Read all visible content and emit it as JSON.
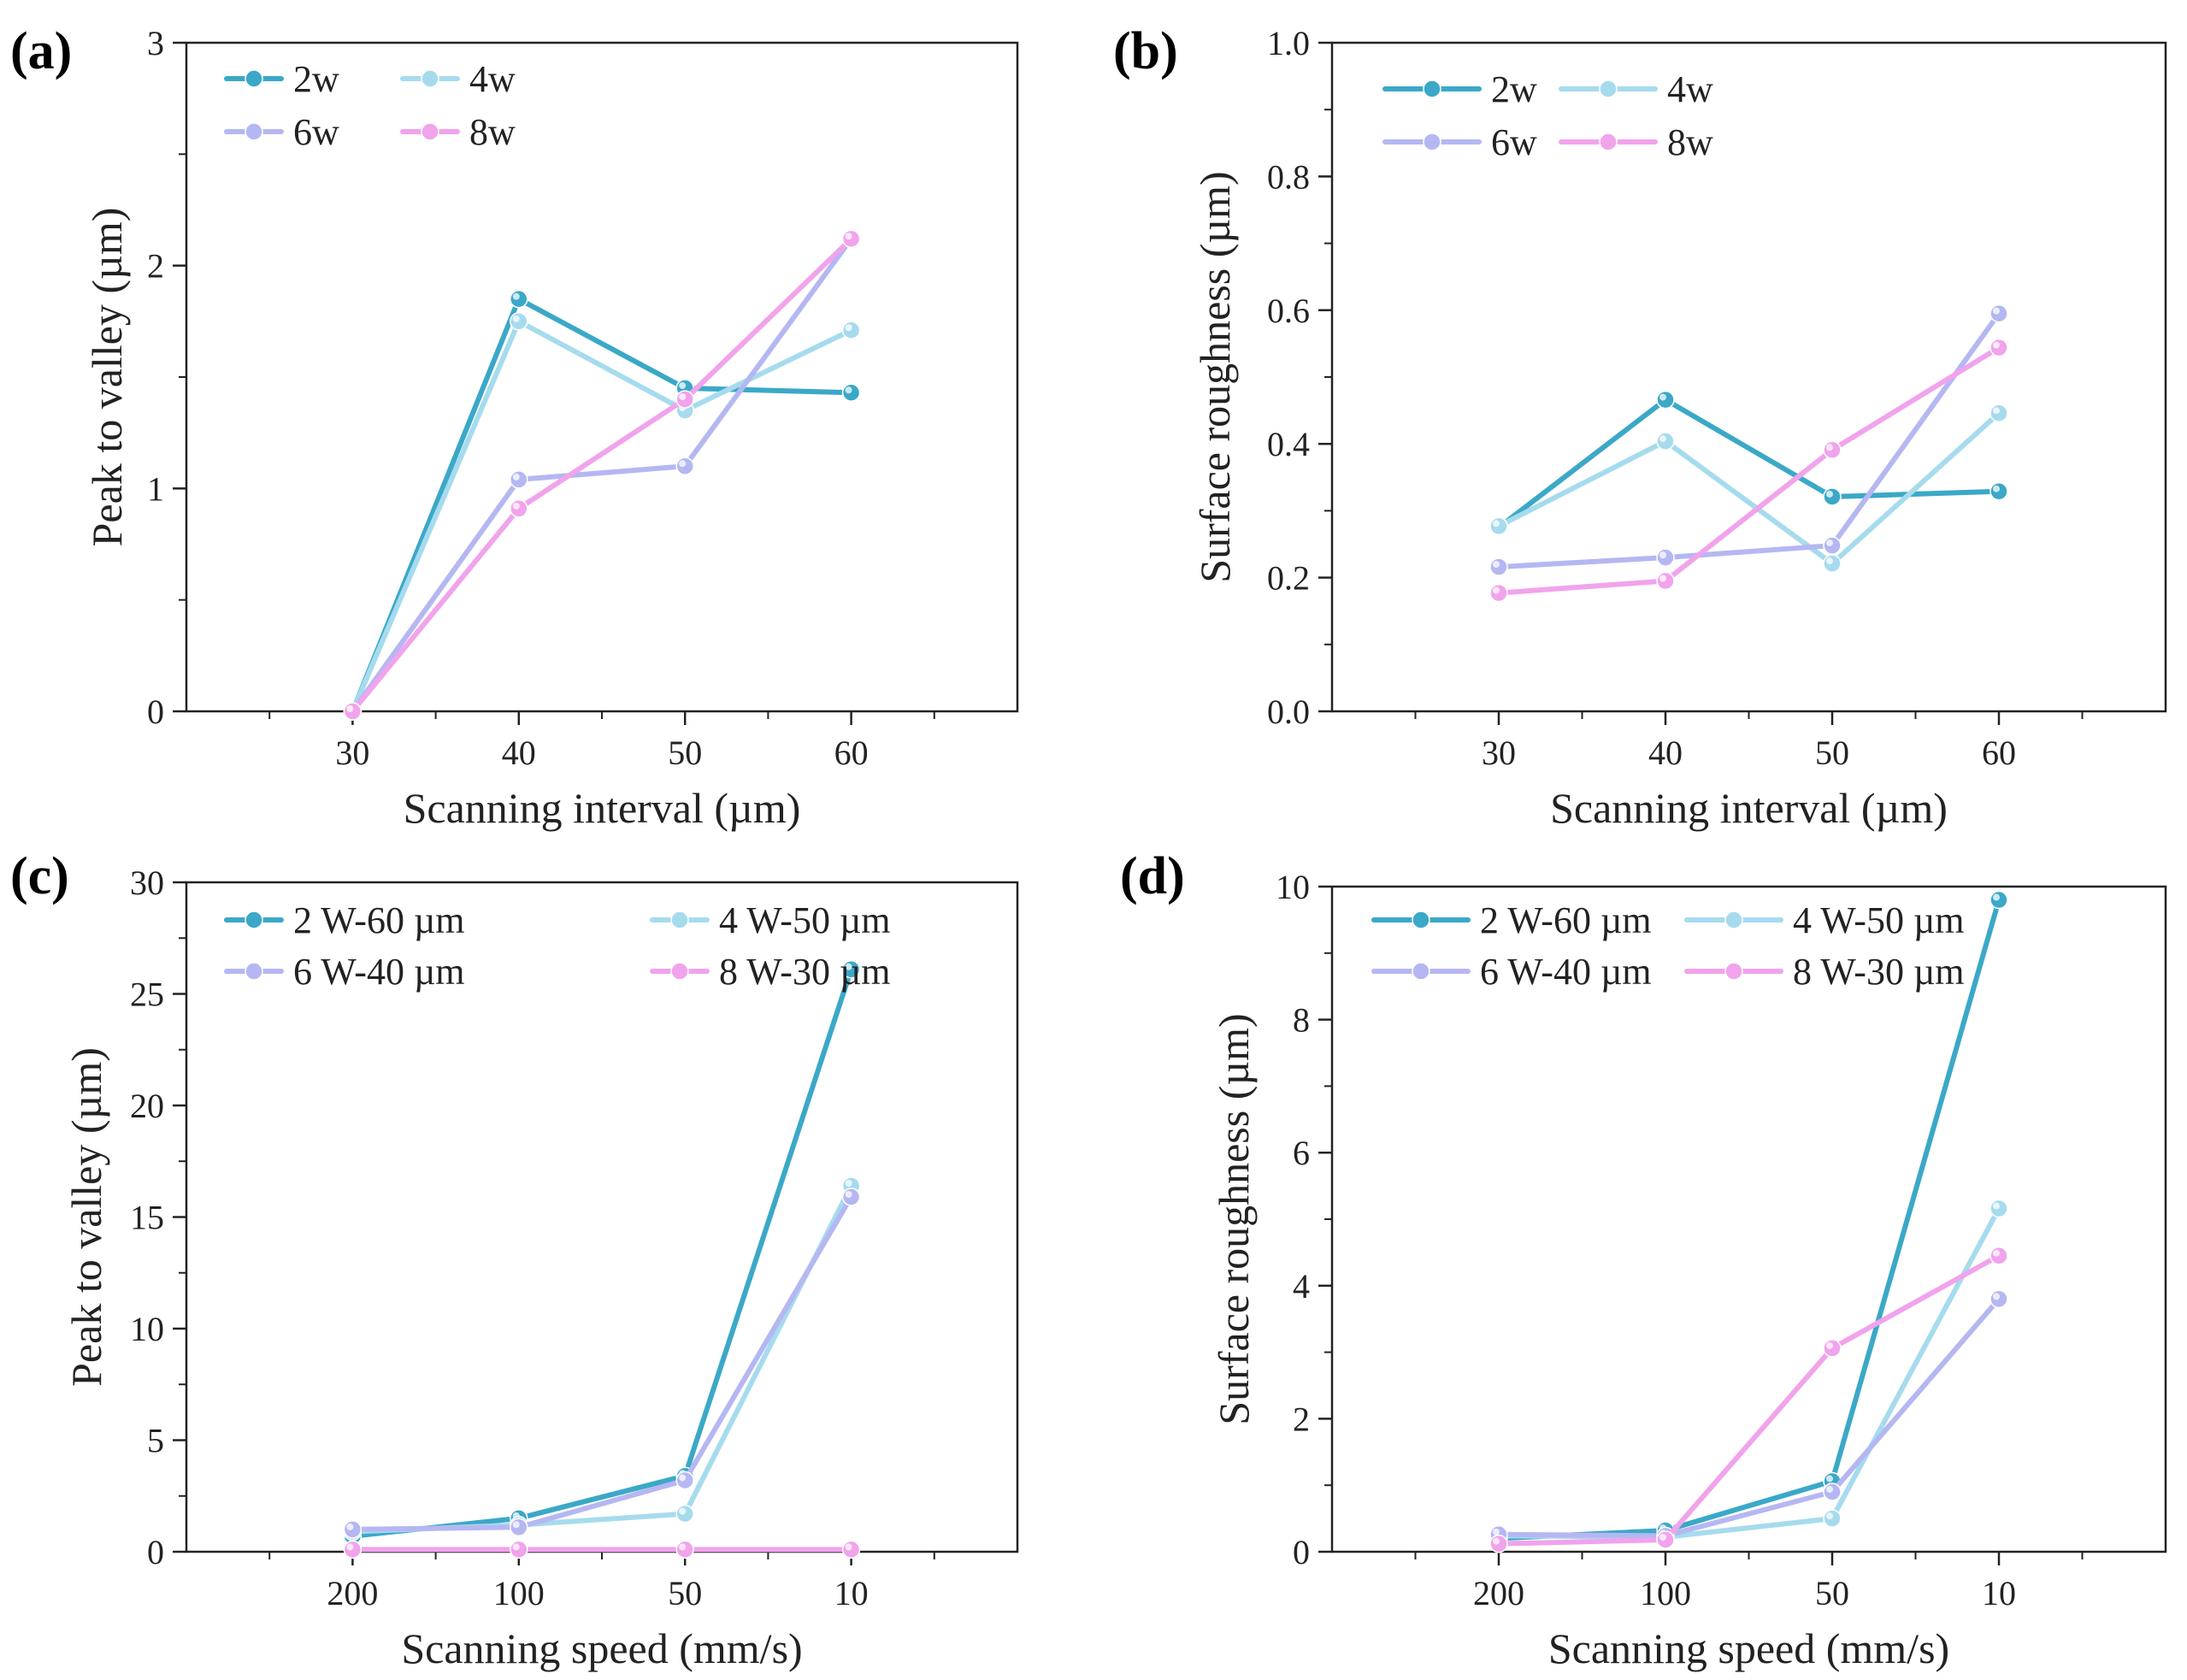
{
  "colors": {
    "s1": "#3BA8C8",
    "s2": "#A6DBEE",
    "s3": "#B5B7F2",
    "s4": "#F1A3EC",
    "axis": "#222222"
  },
  "chart_data": [
    {
      "panel": "(a)",
      "type": "line",
      "xlabel": "Scanning interval (µm)",
      "ylabel": "Peak to valley (µm)",
      "categories": [
        "30",
        "40",
        "50",
        "60"
      ],
      "yticks": [
        "0",
        "1",
        "2",
        "3"
      ],
      "ylim": [
        0,
        3
      ],
      "legend_position": "top-left",
      "series": [
        {
          "name": "2w",
          "values": [
            0.0,
            1.85,
            1.45,
            1.43
          ]
        },
        {
          "name": "4w",
          "values": [
            0.0,
            1.75,
            1.35,
            1.71
          ]
        },
        {
          "name": "6w",
          "values": [
            0.0,
            1.04,
            1.1,
            2.12
          ]
        },
        {
          "name": "8w",
          "values": [
            0.0,
            0.91,
            1.4,
            2.12
          ]
        }
      ]
    },
    {
      "panel": "(b)",
      "type": "line",
      "xlabel": "Scanning interval (µm)",
      "ylabel": "Surface roughness (µm)",
      "categories": [
        "30",
        "40",
        "50",
        "60"
      ],
      "yticks": [
        "0.0",
        "0.2",
        "0.4",
        "0.6",
        "0.8",
        "1.0"
      ],
      "ylim": [
        0,
        1.0
      ],
      "legend_position": "top-left",
      "series": [
        {
          "name": "2w",
          "values": [
            0.275,
            0.466,
            0.321,
            0.329
          ]
        },
        {
          "name": "4w",
          "values": [
            0.277,
            0.404,
            0.221,
            0.446
          ]
        },
        {
          "name": "6w",
          "values": [
            0.216,
            0.23,
            0.248,
            0.595
          ]
        },
        {
          "name": "8w",
          "values": [
            0.177,
            0.195,
            0.391,
            0.544
          ]
        }
      ]
    },
    {
      "panel": "(c)",
      "type": "line",
      "xlabel": "Scanning speed (mm/s)",
      "ylabel": "Peak to valley (µm)",
      "categories": [
        "200",
        "100",
        "50",
        "10"
      ],
      "yticks": [
        "0",
        "5",
        "10",
        "15",
        "20",
        "25",
        "30"
      ],
      "ylim": [
        0,
        30
      ],
      "legend_position": "top-left",
      "series": [
        {
          "name": "2 W-60 µm",
          "values": [
            0.7,
            1.5,
            3.4,
            26.1
          ]
        },
        {
          "name": "4 W-50 µm",
          "values": [
            0.9,
            1.2,
            1.7,
            16.4
          ]
        },
        {
          "name": "6 W-40 µm",
          "values": [
            1.0,
            1.1,
            3.2,
            15.9
          ]
        },
        {
          "name": "8 W-30 µm",
          "values": [
            0.1,
            0.1,
            0.1,
            0.1
          ]
        }
      ]
    },
    {
      "panel": "(d)",
      "type": "line",
      "xlabel": "Scanning speed (mm/s)",
      "ylabel": "Surface roughness (µm)",
      "categories": [
        "200",
        "100",
        "50",
        "10"
      ],
      "yticks": [
        "0",
        "2",
        "4",
        "6",
        "8",
        "10"
      ],
      "ylim": [
        0,
        10
      ],
      "legend_position": "top-left",
      "series": [
        {
          "name": "2 W-60 µm",
          "values": [
            0.2,
            0.32,
            1.06,
            9.8
          ]
        },
        {
          "name": "4 W-50 µm",
          "values": [
            0.24,
            0.22,
            0.5,
            5.16
          ]
        },
        {
          "name": "6 W-40 µm",
          "values": [
            0.26,
            0.24,
            0.9,
            3.8
          ]
        },
        {
          "name": "8 W-30 µm",
          "values": [
            0.12,
            0.18,
            3.06,
            4.45
          ]
        }
      ]
    }
  ]
}
